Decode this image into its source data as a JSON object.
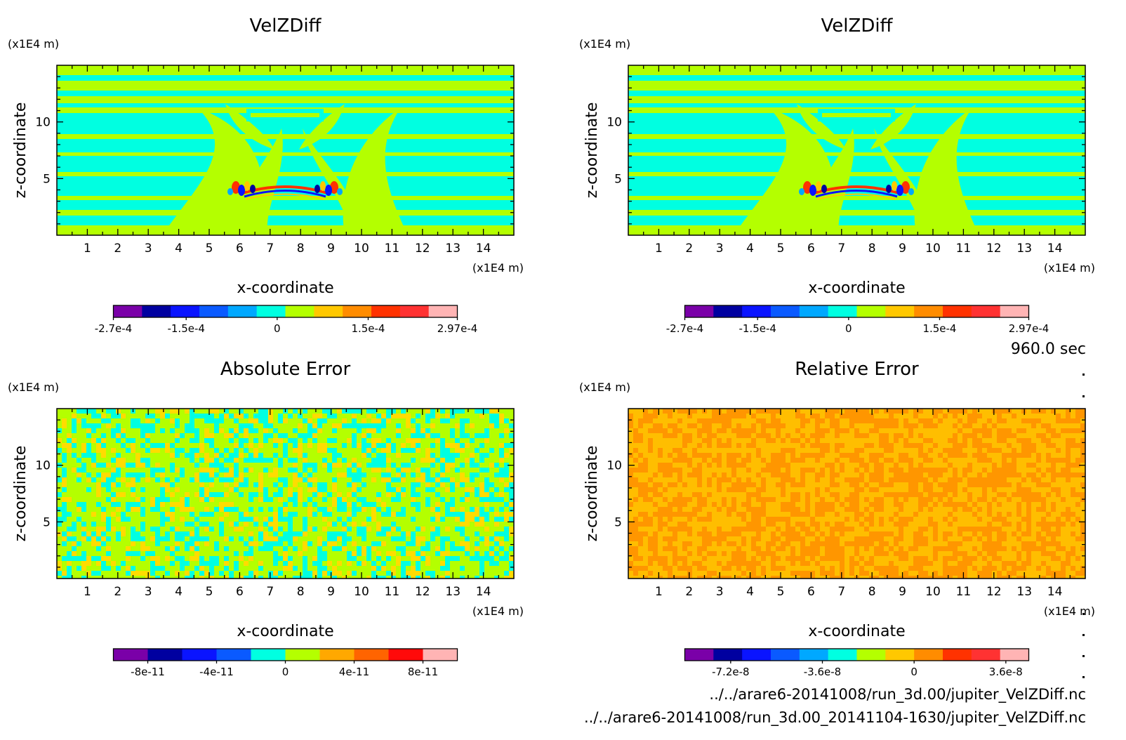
{
  "time_label": "960.0 sec",
  "files": [
    "../../arare6-20141008/run_3d.00/jupiter_VelZDiff.nc",
    "../../arare6-20141008/run_3d.00_20141104-1630/jupiter_VelZDiff.nc"
  ],
  "chart_data": [
    {
      "type": "heatmap",
      "title": "VelZDiff",
      "xlabel": "x-coordinate",
      "ylabel": "z-coordinate",
      "x_unit": "(x1E4 m)",
      "y_unit": "(x1E4 m)",
      "xlim": [
        0,
        15
      ],
      "ylim": [
        0,
        15
      ],
      "xticks": [
        "1",
        "2",
        "3",
        "4",
        "5",
        "6",
        "7",
        "8",
        "9",
        "10",
        "11",
        "12",
        "13",
        "14"
      ],
      "yticks": [
        "5",
        "10"
      ],
      "pattern": "stratified",
      "colorbar": {
        "colors": [
          "#7a00a8",
          "#0000a0",
          "#0a14ff",
          "#0a5aff",
          "#00a8ff",
          "#00ffe1",
          "#b4ff00",
          "#ffc800",
          "#ff8c00",
          "#ff3200",
          "#ff3232",
          "#ffb4b4"
        ],
        "labels": [
          "-2.7e-4",
          "-1.5e-4",
          "0",
          "1.5e-4",
          "2.97e-4"
        ],
        "range": [
          -0.00027,
          0.000297
        ]
      }
    },
    {
      "type": "heatmap",
      "title": "VelZDiff",
      "xlabel": "x-coordinate",
      "ylabel": "z-coordinate",
      "x_unit": "(x1E4 m)",
      "y_unit": "(x1E4 m)",
      "xlim": [
        0,
        15
      ],
      "ylim": [
        0,
        15
      ],
      "xticks": [
        "1",
        "2",
        "3",
        "4",
        "5",
        "6",
        "7",
        "8",
        "9",
        "10",
        "11",
        "12",
        "13",
        "14"
      ],
      "yticks": [
        "5",
        "10"
      ],
      "pattern": "stratified",
      "colorbar": {
        "colors": [
          "#7a00a8",
          "#0000a0",
          "#0a14ff",
          "#0a5aff",
          "#00a8ff",
          "#00ffe1",
          "#b4ff00",
          "#ffc800",
          "#ff8c00",
          "#ff3200",
          "#ff3232",
          "#ffb4b4"
        ],
        "labels": [
          "-2.7e-4",
          "-1.5e-4",
          "0",
          "1.5e-4",
          "2.97e-4"
        ],
        "range": [
          -0.00027,
          0.000297
        ]
      }
    },
    {
      "type": "heatmap",
      "title": "Absolute Error",
      "xlabel": "x-coordinate",
      "ylabel": "z-coordinate",
      "x_unit": "(x1E4 m)",
      "y_unit": "(x1E4 m)",
      "xlim": [
        0,
        15
      ],
      "ylim": [
        0,
        15
      ],
      "xticks": [
        "1",
        "2",
        "3",
        "4",
        "5",
        "6",
        "7",
        "8",
        "9",
        "10",
        "11",
        "12",
        "13",
        "14"
      ],
      "yticks": [
        "5",
        "10"
      ],
      "pattern": "noise",
      "noise_colors": [
        "#00ffe1",
        "#b4ff00",
        "#ffdc00"
      ],
      "colorbar": {
        "colors": [
          "#7a00a8",
          "#0000a0",
          "#0a14ff",
          "#0a5aff",
          "#00ffe1",
          "#b4ff00",
          "#ffa800",
          "#ff6400",
          "#ff0a0a",
          "#ffb4b4"
        ],
        "labels": [
          "-8e-11",
          "-4e-11",
          "0",
          "4e-11",
          "8e-11"
        ],
        "range": [
          -1e-10,
          1e-10
        ]
      }
    },
    {
      "type": "heatmap",
      "title": "Relative Error",
      "xlabel": "x-coordinate",
      "ylabel": "z-coordinate",
      "x_unit": "(x1E4 m)",
      "y_unit": "(x1E4 m)",
      "xlim": [
        0,
        15
      ],
      "ylim": [
        0,
        15
      ],
      "xticks": [
        "1",
        "2",
        "3",
        "4",
        "5",
        "6",
        "7",
        "8",
        "9",
        "10",
        "11",
        "12",
        "13",
        "14"
      ],
      "yticks": [
        "5",
        "10"
      ],
      "pattern": "noise",
      "noise_colors": [
        "#ff9600",
        "#ffbe00"
      ],
      "colorbar": {
        "colors": [
          "#7a00a8",
          "#0000a0",
          "#0a14ff",
          "#0a5aff",
          "#00a8ff",
          "#00ffe1",
          "#b4ff00",
          "#ffc800",
          "#ff8c00",
          "#ff3200",
          "#ff3232",
          "#ffb4b4"
        ],
        "labels": [
          "-7.2e-8",
          "-3.6e-8",
          "0",
          "3.6e-8"
        ],
        "range": [
          -9e-08,
          4.5e-08
        ]
      }
    }
  ]
}
